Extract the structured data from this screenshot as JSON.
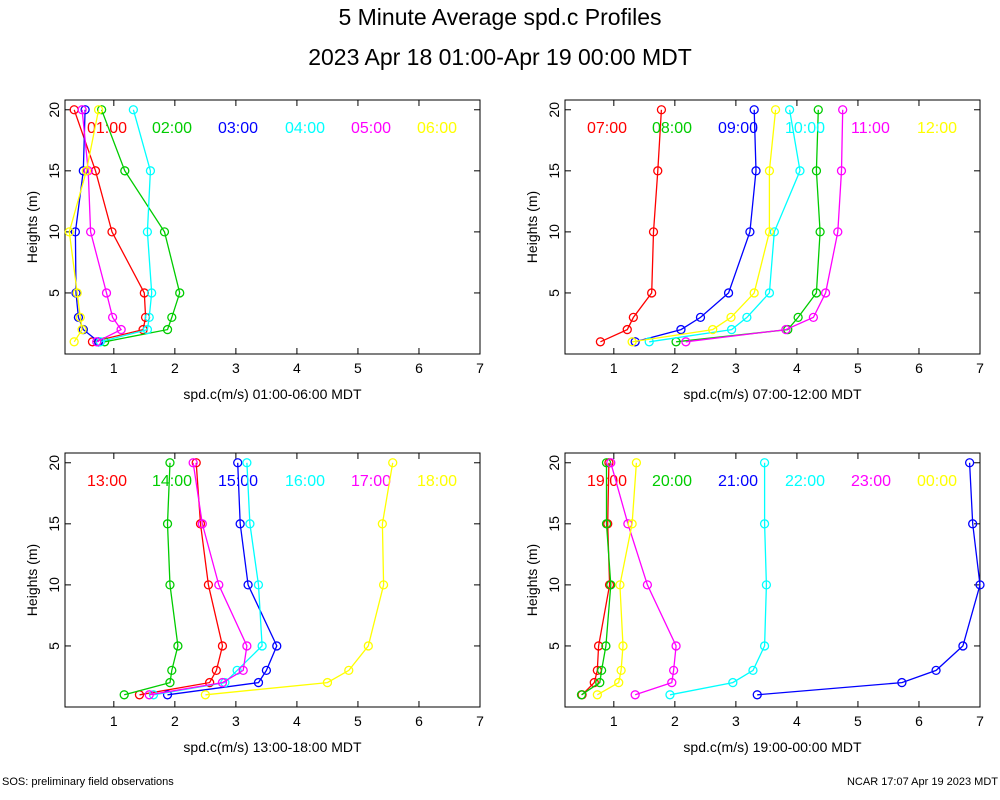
{
  "title": "5 Minute Average spd.c Profiles",
  "subtitle": "2023 Apr 18 01:00-Apr 19 00:00 MDT",
  "footer_left": "SOS: preliminary field observations",
  "footer_right": "NCAR 17:07 Apr 19 2023 MDT",
  "series_colors": [
    "#ff0000",
    "#00cc00",
    "#0000ff",
    "#00ffff",
    "#ff00ff",
    "#ffff00"
  ],
  "chart_data": [
    {
      "type": "line",
      "xlabel": "spd.c(m/s) 01:00-06:00 MDT",
      "ylabel": "Heights (m)",
      "xlim": [
        0.2,
        7
      ],
      "ylim": [
        0,
        20.8
      ],
      "xticks": [
        1,
        2,
        3,
        4,
        5,
        6,
        7
      ],
      "yticks": [
        5,
        10,
        15,
        20
      ],
      "heights": [
        1,
        2,
        3,
        5,
        10,
        15,
        20
      ],
      "series": [
        {
          "name": "01:00",
          "values": [
            0.65,
            1.48,
            1.52,
            1.5,
            0.97,
            0.7,
            0.35
          ]
        },
        {
          "name": "02:00",
          "values": [
            0.85,
            1.88,
            1.95,
            2.08,
            1.83,
            1.18,
            0.8
          ]
        },
        {
          "name": "03:00",
          "values": [
            0.75,
            0.5,
            0.42,
            0.38,
            0.37,
            0.5,
            0.53
          ]
        },
        {
          "name": "04:00",
          "values": [
            0.78,
            1.55,
            1.58,
            1.62,
            1.55,
            1.6,
            1.32
          ]
        },
        {
          "name": "05:00",
          "values": [
            0.72,
            1.12,
            0.98,
            0.88,
            0.62,
            0.58,
            0.48
          ]
        },
        {
          "name": "06:00",
          "values": [
            0.35,
            0.48,
            0.45,
            0.4,
            0.27,
            0.55,
            0.75
          ]
        }
      ]
    },
    {
      "type": "line",
      "xlabel": "spd.c(m/s) 07:00-12:00 MDT",
      "ylabel": "Heights (m)",
      "xlim": [
        0.2,
        7
      ],
      "ylim": [
        0,
        20.8
      ],
      "xticks": [
        1,
        2,
        3,
        4,
        5,
        6,
        7
      ],
      "yticks": [
        5,
        10,
        15,
        20
      ],
      "heights": [
        1,
        2,
        3,
        5,
        10,
        15,
        20
      ],
      "series": [
        {
          "name": "07:00",
          "values": [
            0.78,
            1.22,
            1.32,
            1.62,
            1.65,
            1.72,
            1.78
          ]
        },
        {
          "name": "08:00",
          "values": [
            2.02,
            3.85,
            4.02,
            4.32,
            4.38,
            4.32,
            4.35
          ]
        },
        {
          "name": "09:00",
          "values": [
            1.35,
            2.1,
            2.42,
            2.88,
            3.23,
            3.33,
            3.3
          ]
        },
        {
          "name": "10:00",
          "values": [
            1.58,
            2.93,
            3.18,
            3.55,
            3.63,
            4.05,
            3.88
          ]
        },
        {
          "name": "11:00",
          "values": [
            2.18,
            3.82,
            4.27,
            4.47,
            4.67,
            4.73,
            4.75
          ]
        },
        {
          "name": "12:00",
          "values": [
            1.3,
            2.62,
            2.92,
            3.3,
            3.55,
            3.55,
            3.65
          ]
        }
      ]
    },
    {
      "type": "line",
      "xlabel": "spd.c(m/s) 13:00-18:00 MDT",
      "ylabel": "Heights (m)",
      "xlim": [
        0.2,
        7
      ],
      "ylim": [
        0,
        20.8
      ],
      "xticks": [
        1,
        2,
        3,
        4,
        5,
        6,
        7
      ],
      "yticks": [
        5,
        10,
        15,
        20
      ],
      "heights": [
        1,
        2,
        3,
        5,
        10,
        15,
        20
      ],
      "series": [
        {
          "name": "13:00",
          "values": [
            1.42,
            2.57,
            2.68,
            2.78,
            2.55,
            2.42,
            2.35
          ]
        },
        {
          "name": "14:00",
          "values": [
            1.17,
            1.92,
            1.95,
            2.05,
            1.92,
            1.88,
            1.92
          ]
        },
        {
          "name": "15:00",
          "values": [
            1.88,
            3.37,
            3.5,
            3.67,
            3.2,
            3.07,
            3.03
          ]
        },
        {
          "name": "16:00",
          "values": [
            1.65,
            2.82,
            3.02,
            3.43,
            3.37,
            3.23,
            3.18
          ]
        },
        {
          "name": "17:00",
          "values": [
            1.58,
            2.78,
            3.12,
            3.18,
            2.72,
            2.45,
            2.3
          ]
        },
        {
          "name": "18:00",
          "values": [
            2.5,
            4.5,
            4.85,
            5.17,
            5.42,
            5.4,
            5.57
          ]
        }
      ]
    },
    {
      "type": "line",
      "xlabel": "spd.c(m/s) 19:00-00:00 MDT",
      "ylabel": "Heights (m)",
      "xlim": [
        0.2,
        7
      ],
      "ylim": [
        0,
        20.8
      ],
      "xticks": [
        1,
        2,
        3,
        4,
        5,
        6,
        7
      ],
      "yticks": [
        5,
        10,
        15,
        20
      ],
      "heights": [
        1,
        2,
        3,
        5,
        10,
        15,
        20
      ],
      "series": [
        {
          "name": "19:00",
          "values": [
            0.48,
            0.68,
            0.73,
            0.75,
            0.93,
            0.9,
            0.92
          ]
        },
        {
          "name": "20:00",
          "values": [
            0.47,
            0.77,
            0.8,
            0.87,
            0.95,
            0.88,
            0.88
          ]
        },
        {
          "name": "21:00",
          "values": [
            3.35,
            5.72,
            6.28,
            6.72,
            7.0,
            6.88,
            6.83
          ]
        },
        {
          "name": "22:00",
          "values": [
            1.92,
            2.95,
            3.28,
            3.47,
            3.5,
            3.47,
            3.47
          ]
        },
        {
          "name": "23:00",
          "values": [
            1.35,
            1.95,
            1.98,
            2.02,
            1.55,
            1.23,
            0.95
          ]
        },
        {
          "name": "00:00",
          "values": [
            0.73,
            1.08,
            1.12,
            1.15,
            1.1,
            1.3,
            1.37
          ]
        }
      ]
    }
  ]
}
